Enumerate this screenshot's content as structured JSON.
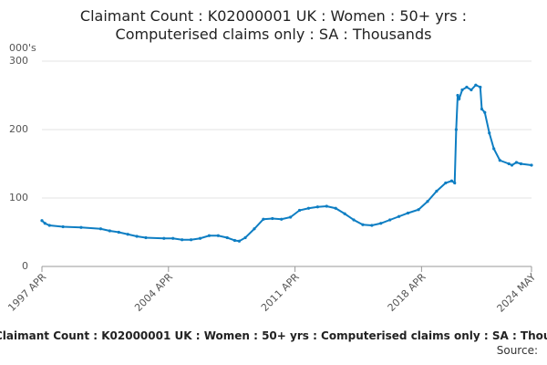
{
  "chart_data": {
    "type": "line",
    "title": "Claimant Count : K02000001 UK : Women : 50+ yrs : Computerised claims only : SA : Thousands",
    "y_label": "000's",
    "source": "Source:",
    "x": [
      "1997 APR",
      "1997 JUN",
      "1997 SEP",
      "1998 JUN",
      "1999 JUN",
      "2000 JUL",
      "2001 JAN",
      "2001 JUL",
      "2002 JAN",
      "2002 JUL",
      "2003 JAN",
      "2004 JAN",
      "2004 JUL",
      "2005 JAN",
      "2005 JUL",
      "2006 JAN",
      "2006 JUL",
      "2007 JAN",
      "2007 JUL",
      "2007 DEC",
      "2008 MAR",
      "2008 JUL",
      "2009 JAN",
      "2009 JUL",
      "2010 JAN",
      "2010 JUL",
      "2011 JAN",
      "2011 JUL",
      "2012 JAN",
      "2012 JUL",
      "2013 JAN",
      "2013 JUL",
      "2014 JAN",
      "2014 JUL",
      "2015 JAN",
      "2015 JUL",
      "2016 JAN",
      "2016 JUL",
      "2017 JAN",
      "2017 JUL",
      "2018 FEB",
      "2018 AUG",
      "2019 FEB",
      "2019 AUG",
      "2019 DEC",
      "2020 FEB",
      "2020 MAR",
      "2020 APR",
      "2020 MAY",
      "2020 JUL",
      "2020 OCT",
      "2021 JAN",
      "2021 APR",
      "2021 JUL",
      "2021 AUG",
      "2021 OCT",
      "2022 JAN",
      "2022 APR",
      "2022 AUG",
      "2023 FEB",
      "2023 APR",
      "2023 JUL",
      "2023 OCT",
      "2024 MAY"
    ],
    "series": [
      {
        "color": "#0e7ec3",
        "values": [
          67,
          63,
          60,
          58,
          57,
          55,
          52,
          50,
          47,
          44,
          42,
          41,
          41,
          39,
          39,
          41,
          45,
          45,
          42,
          38,
          37,
          42,
          55,
          69,
          70,
          69,
          72,
          82,
          85,
          87,
          88,
          85,
          77,
          68,
          61,
          60,
          63,
          68,
          73,
          78,
          83,
          95,
          110,
          122,
          125,
          122,
          200,
          250,
          245,
          258,
          262,
          258,
          265,
          262,
          230,
          225,
          195,
          172,
          155,
          150,
          148,
          152,
          150,
          148
        ]
      }
    ],
    "xlim": [
      "1997 APR",
      "2024 MAY"
    ],
    "xticks": [
      "1997 APR",
      "2004 APR",
      "2011 APR",
      "2018 APR",
      "2024 MAY"
    ],
    "ylim": [
      0,
      300
    ],
    "yticks": [
      0,
      100,
      200,
      300
    ],
    "grid": true
  }
}
